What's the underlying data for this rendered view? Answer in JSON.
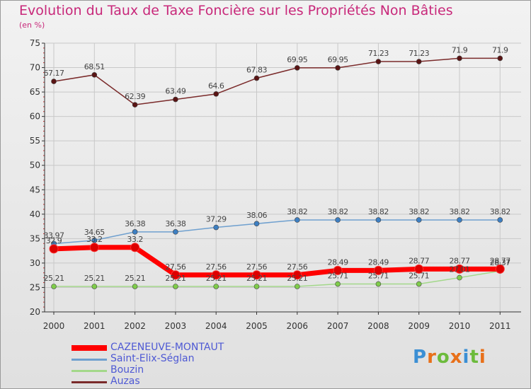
{
  "title": "Evolution du Taux de Taxe Foncière sur les Propriétés Non Bâties",
  "unit": "(en %)",
  "logo": {
    "text": "Proxiti",
    "colors": [
      "#3b8fd4",
      "#e8701a",
      "#6cbb3c",
      "#e8701a",
      "#3b8fd4",
      "#6cbb3c",
      "#e8701a"
    ]
  },
  "chart_data": {
    "type": "line",
    "title": "Evolution du Taux de Taxe Foncière sur les Propriétés Non Bâties",
    "ylabel": "(en %)",
    "xlabel": "",
    "ylim": [
      20,
      75
    ],
    "yticks": [
      20,
      25,
      30,
      35,
      40,
      45,
      50,
      55,
      60,
      65,
      70,
      75
    ],
    "categories": [
      "2000",
      "2001",
      "2002",
      "2003",
      "2004",
      "2005",
      "2006",
      "2007",
      "2008",
      "2009",
      "2010",
      "2011"
    ],
    "legend_position": "bottom-left",
    "series": [
      {
        "name": "CAZENEUVE-MONTAUT",
        "color": "#ff0000",
        "marker": "#dd0000",
        "width": 7,
        "radius": 6,
        "values": [
          32.9,
          33.2,
          33.2,
          27.56,
          27.56,
          27.56,
          27.56,
          28.49,
          28.49,
          28.77,
          28.77,
          28.77
        ],
        "labels": [
          "32.9",
          "33.2",
          "33.2",
          "27.56",
          "27.56",
          "27.56",
          "27.56",
          "28.49",
          "28.49",
          "28.77",
          "28.77",
          "28.77"
        ]
      },
      {
        "name": "Saint-Elix-Séglan",
        "color": "#6fa0cf",
        "marker": "#3d7fc2",
        "width": 1.5,
        "radius": 3.5,
        "values": [
          33.97,
          34.65,
          36.38,
          36.38,
          37.29,
          38.06,
          38.82,
          38.82,
          38.82,
          38.82,
          38.82,
          38.82
        ],
        "labels": [
          "33.97",
          "34.65",
          "36.38",
          "36.38",
          "37.29",
          "38.06",
          "38.82",
          "38.82",
          "38.82",
          "38.82",
          "38.82",
          "38.82"
        ]
      },
      {
        "name": "Bouzin",
        "color": "#a3d88a",
        "marker": "#7fcc4a",
        "width": 1.5,
        "radius": 3.5,
        "values": [
          25.21,
          25.21,
          25.21,
          25.21,
          25.21,
          25.21,
          25.21,
          25.71,
          25.71,
          25.71,
          27.01,
          28.37
        ],
        "labels": [
          "25.21",
          "25.21",
          "25.21",
          "25.21",
          "25.21",
          "25.21",
          "25.21",
          "25.71",
          "25.71",
          "25.71",
          "27.01",
          "28.37"
        ]
      },
      {
        "name": "Auzas",
        "color": "#7a2a2a",
        "marker": "#5a1414",
        "width": 1.5,
        "radius": 3.5,
        "values": [
          67.17,
          68.51,
          62.39,
          63.49,
          64.6,
          67.83,
          69.95,
          69.95,
          71.23,
          71.23,
          71.9,
          71.9
        ],
        "labels": [
          "67.17",
          "68.51",
          "62.39",
          "63.49",
          "64.6",
          "67.83",
          "69.95",
          "69.95",
          "71.23",
          "71.23",
          "71.9",
          "71.9"
        ]
      }
    ]
  }
}
